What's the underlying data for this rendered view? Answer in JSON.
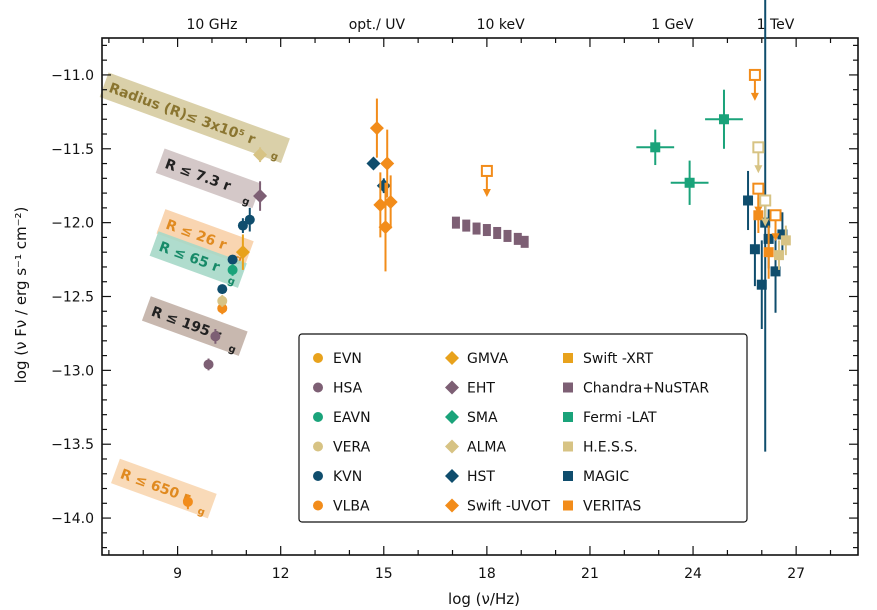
{
  "chart_data": {
    "type": "scatter",
    "xlabel": "log (ν/Hz)",
    "ylabel": "log (ν Fν / erg s⁻¹ cm⁻²)",
    "xlim": [
      6.8,
      28.8
    ],
    "ylim": [
      -14.25,
      -10.75
    ],
    "x_ticks": [
      9,
      12,
      15,
      18,
      21,
      24,
      27
    ],
    "y_ticks": [
      -11.0,
      -11.5,
      -12.0,
      -12.5,
      -13.0,
      -13.5,
      -14.0
    ],
    "x_tick_labels": [
      "9",
      "12",
      "15",
      "18",
      "21",
      "24",
      "27"
    ],
    "y_tick_labels": [
      "−11.0",
      "−11.5",
      "−12.0",
      "−12.5",
      "−13.0",
      "−13.5",
      "−14.0"
    ],
    "top_axis_labels": [
      {
        "text": "10 GHz",
        "x": 10.0
      },
      {
        "text": "opt./ UV",
        "x": 14.8
      },
      {
        "text": "10 keV",
        "x": 18.4
      },
      {
        "text": "1 GeV",
        "x": 23.4
      },
      {
        "text": "1 TeV",
        "x": 26.4
      }
    ],
    "region_labels": [
      {
        "text": "Radius (R)≤ 3x10⁵ r",
        "sub": "g",
        "x": 9.5,
        "y": -11.29,
        "bg": "#d6cba0",
        "color": "#8a7530"
      },
      {
        "text": "R ≤ 7.3 r",
        "sub": "g",
        "x": 9.9,
        "y": -11.7,
        "bg": "#cfc2c2",
        "color": "#222222"
      },
      {
        "text": "R ≤ 26 r",
        "sub": "g",
        "x": 9.8,
        "y": -12.1,
        "bg": "#f8d0a8",
        "color": "#e08a20"
      },
      {
        "text": "R ≤ 65 r",
        "sub": "g",
        "x": 9.6,
        "y": -12.25,
        "bg": "#a6d8c8",
        "color": "#178a68"
      },
      {
        "text": "R ≤ 195 r",
        "sub": "g",
        "x": 9.5,
        "y": -12.7,
        "bg": "#c2b0a6",
        "color": "#222222"
      },
      {
        "text": "R ≤ 650 r",
        "sub": "g",
        "x": 8.6,
        "y": -13.8,
        "bg": "#f8d6b0",
        "color": "#e08a20"
      }
    ],
    "legend": {
      "columns": [
        [
          {
            "name": "EVN",
            "marker": "circle",
            "color": "#e8a21c"
          },
          {
            "name": "HSA",
            "marker": "circle",
            "color": "#7d5f74"
          },
          {
            "name": "EAVN",
            "marker": "circle",
            "color": "#1aa37a"
          },
          {
            "name": "VERA",
            "marker": "circle",
            "color": "#d7c384"
          },
          {
            "name": "KVN",
            "marker": "circle",
            "color": "#0f4d6d"
          },
          {
            "name": "VLBA",
            "marker": "circle",
            "color": "#f28c1a"
          }
        ],
        [
          {
            "name": "GMVA",
            "marker": "diamond",
            "color": "#e8a21c"
          },
          {
            "name": "EHT",
            "marker": "diamond",
            "color": "#7d5f74"
          },
          {
            "name": "SMA",
            "marker": "diamond",
            "color": "#1aa37a"
          },
          {
            "name": "ALMA",
            "marker": "diamond",
            "color": "#d7c384"
          },
          {
            "name": "HST",
            "marker": "diamond",
            "color": "#0f4d6d"
          },
          {
            "name": "Swift -UVOT",
            "marker": "diamond",
            "color": "#f28c1a"
          }
        ],
        [
          {
            "name": "Swift -XRT",
            "marker": "square",
            "color": "#e8a21c"
          },
          {
            "name": "Chandra+NuSTAR",
            "marker": "square",
            "color": "#7d5f74"
          },
          {
            "name": "Fermi -LAT",
            "marker": "square",
            "color": "#1aa37a"
          },
          {
            "name": "H.E.S.S.",
            "marker": "square",
            "color": "#d7c384"
          },
          {
            "name": "MAGIC",
            "marker": "square",
            "color": "#0f4d6d"
          },
          {
            "name": "VERITAS",
            "marker": "square",
            "color": "#f28c1a"
          }
        ]
      ]
    },
    "series": [
      {
        "name": "VLBA",
        "marker": "circle",
        "color": "#f28c1a",
        "points": [
          {
            "x": 9.3,
            "y": -13.89,
            "err": 0.05
          },
          {
            "x": 10.3,
            "y": -12.58,
            "err": 0.04
          }
        ]
      },
      {
        "name": "HSA",
        "marker": "circle",
        "color": "#7d5f74",
        "points": [
          {
            "x": 9.9,
            "y": -12.96,
            "err": 0.04
          },
          {
            "x": 10.1,
            "y": -12.77,
            "err": 0.05
          }
        ]
      },
      {
        "name": "VERA",
        "marker": "circle",
        "color": "#d7c384",
        "points": [
          {
            "x": 10.3,
            "y": -12.53,
            "err": 0.04
          }
        ]
      },
      {
        "name": "KVN",
        "marker": "circle",
        "color": "#0f4d6d",
        "points": [
          {
            "x": 10.3,
            "y": -12.45,
            "err": 0.03
          },
          {
            "x": 10.6,
            "y": -12.25,
            "err": 0.03
          },
          {
            "x": 10.9,
            "y": -12.02,
            "err": 0.05
          },
          {
            "x": 11.1,
            "y": -11.98,
            "err": 0.08
          }
        ]
      },
      {
        "name": "EAVN",
        "marker": "circle",
        "color": "#1aa37a",
        "points": [
          {
            "x": 10.6,
            "y": -12.32,
            "err": 0.04
          }
        ]
      },
      {
        "name": "GMVA",
        "marker": "diamond",
        "color": "#e8a21c",
        "points": [
          {
            "x": 10.9,
            "y": -12.2,
            "err": 0.12
          }
        ]
      },
      {
        "name": "EHT",
        "marker": "diamond",
        "color": "#7d5f74",
        "points": [
          {
            "x": 11.4,
            "y": -11.82,
            "err": 0.1
          }
        ]
      },
      {
        "name": "ALMA",
        "marker": "diamond",
        "color": "#d7c384",
        "points": [
          {
            "x": 11.4,
            "y": -11.54,
            "err": 0.05
          }
        ]
      },
      {
        "name": "HST",
        "marker": "diamond",
        "color": "#0f4d6d",
        "points": [
          {
            "x": 14.7,
            "y": -11.6,
            "err": 0.03
          },
          {
            "x": 15.0,
            "y": -11.75,
            "err": 0.05
          }
        ]
      },
      {
        "name": "Swift -UVOT",
        "marker": "diamond",
        "color": "#f28c1a",
        "points": [
          {
            "x": 14.8,
            "y": -11.36,
            "err": 0.2
          },
          {
            "x": 14.9,
            "y": -11.88,
            "err": 0.22
          },
          {
            "x": 15.1,
            "y": -11.6,
            "err": 0.23
          },
          {
            "x": 15.2,
            "y": -11.86,
            "err": 0.18
          },
          {
            "x": 15.05,
            "y": -12.03,
            "err": 0.3
          }
        ]
      },
      {
        "name": "Chandra+NuSTAR",
        "marker": "bowtie",
        "color": "#7d5f74",
        "points": [
          {
            "x": 17.1,
            "y": -12.0
          },
          {
            "x": 17.4,
            "y": -12.02
          },
          {
            "x": 17.7,
            "y": -12.04
          },
          {
            "x": 18.0,
            "y": -12.05
          },
          {
            "x": 18.3,
            "y": -12.07
          },
          {
            "x": 18.6,
            "y": -12.09
          },
          {
            "x": 18.9,
            "y": -12.11
          },
          {
            "x": 19.1,
            "y": -12.13
          }
        ]
      },
      {
        "name": "Swift -XRT",
        "marker": "square-open-ul",
        "color": "#f28c1a",
        "points": [
          {
            "x": 18.0,
            "y": -11.65
          }
        ]
      },
      {
        "name": "Fermi -LAT",
        "marker": "square",
        "color": "#1aa37a",
        "points": [
          {
            "x": 22.9,
            "y": -11.49,
            "errx": 0.55,
            "err": 0.12
          },
          {
            "x": 23.9,
            "y": -11.73,
            "errx": 0.55,
            "err": 0.15
          },
          {
            "x": 24.9,
            "y": -11.3,
            "errx": 0.55,
            "err": 0.2
          }
        ]
      },
      {
        "name": "MAGIC",
        "marker": "square",
        "color": "#0f4d6d",
        "points": [
          {
            "x": 25.6,
            "y": -11.85,
            "err": 0.2
          },
          {
            "x": 25.8,
            "y": -12.18,
            "err": 0.25
          },
          {
            "x": 26.0,
            "y": -12.42,
            "err": 0.3
          },
          {
            "x": 26.2,
            "y": -12.11,
            "err": 0.2
          },
          {
            "x": 26.4,
            "y": -12.33,
            "err": 0.28
          },
          {
            "x": 26.1,
            "y": -12.0,
            "err": 1.55
          },
          {
            "x": 26.6,
            "y": -12.08,
            "err": 0.15
          }
        ]
      },
      {
        "name": "VERITAS",
        "marker": "square",
        "color": "#f28c1a",
        "points": [
          {
            "x": 25.9,
            "y": -11.95,
            "err": 0.12
          },
          {
            "x": 26.2,
            "y": -12.2,
            "err": 0.18
          }
        ]
      },
      {
        "name": "VERITAS UL",
        "marker": "square-open-ul",
        "color": "#f28c1a",
        "points": [
          {
            "x": 25.8,
            "y": -11.0
          },
          {
            "x": 25.9,
            "y": -11.77
          },
          {
            "x": 26.4,
            "y": -11.95
          }
        ]
      },
      {
        "name": "H.E.S.S. UL",
        "marker": "square-open-ul",
        "color": "#d7c384",
        "points": [
          {
            "x": 25.9,
            "y": -11.49
          },
          {
            "x": 26.1,
            "y": -11.85
          }
        ]
      },
      {
        "name": "H.E.S.S.",
        "marker": "square",
        "color": "#d7c384",
        "points": [
          {
            "x": 26.7,
            "y": -12.12,
            "err": 0.1
          },
          {
            "x": 26.5,
            "y": -12.22,
            "err": 0.1
          }
        ]
      },
      {
        "name": "SMA",
        "marker": "diamond",
        "color": "#1aa37a",
        "points": []
      }
    ]
  }
}
